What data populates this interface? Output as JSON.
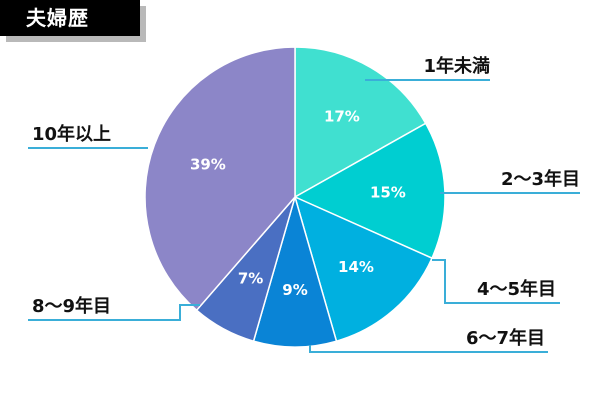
{
  "title": "夫婦歴",
  "chart_data": {
    "type": "pie",
    "categories": [
      "1年未満",
      "2〜3年目",
      "4〜5年目",
      "6〜7年目",
      "8〜9年目",
      "10年以上"
    ],
    "values": [
      17,
      15,
      14,
      9,
      7,
      39
    ],
    "value_labels": [
      "17%",
      "15%",
      "14%",
      "9%",
      "7%",
      "39%"
    ],
    "colors": [
      "#40e0d0",
      "#00ced1",
      "#00b0e0",
      "#0a84d6",
      "#4a6fc2",
      "#8c86c8"
    ],
    "leader_color": "#3aaed8",
    "start": "12 o'clock",
    "direction": "clockwise"
  }
}
